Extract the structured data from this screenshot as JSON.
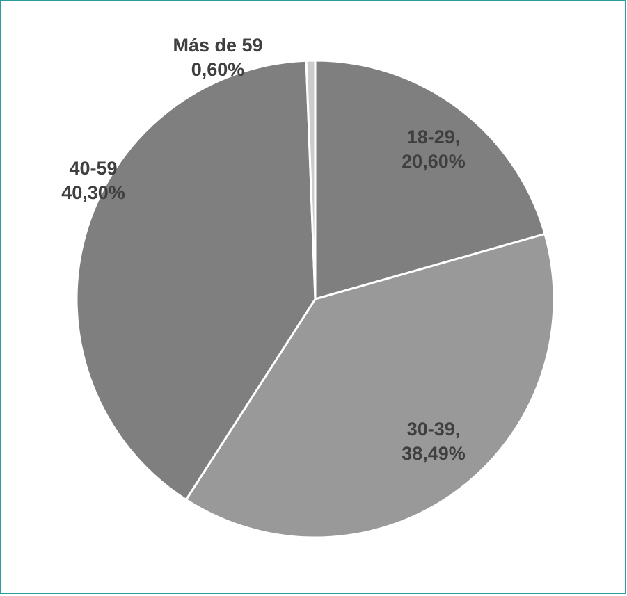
{
  "chart_data": {
    "type": "pie",
    "title": "",
    "slices": [
      {
        "label": "18-29",
        "label_text": "18-29,",
        "value": 20.6,
        "value_text": "20,60%",
        "color": "#7f7f7f"
      },
      {
        "label": "30-39",
        "label_text": "30-39,",
        "value": 38.49,
        "value_text": "38,49%",
        "color": "#999999"
      },
      {
        "label": "40-59",
        "label_text": "40-59",
        "value": 40.3,
        "value_text": "40,30%",
        "color": "#7f7f7f"
      },
      {
        "label": "Más de 59",
        "label_text": "Más de 59",
        "value": 0.6,
        "value_text": "0,60%",
        "color": "#cccccc"
      }
    ],
    "start_angle": "12 o'clock",
    "direction": "clockwise",
    "separator_color": "#ffffff",
    "frame_color": "#2a9d9f"
  }
}
